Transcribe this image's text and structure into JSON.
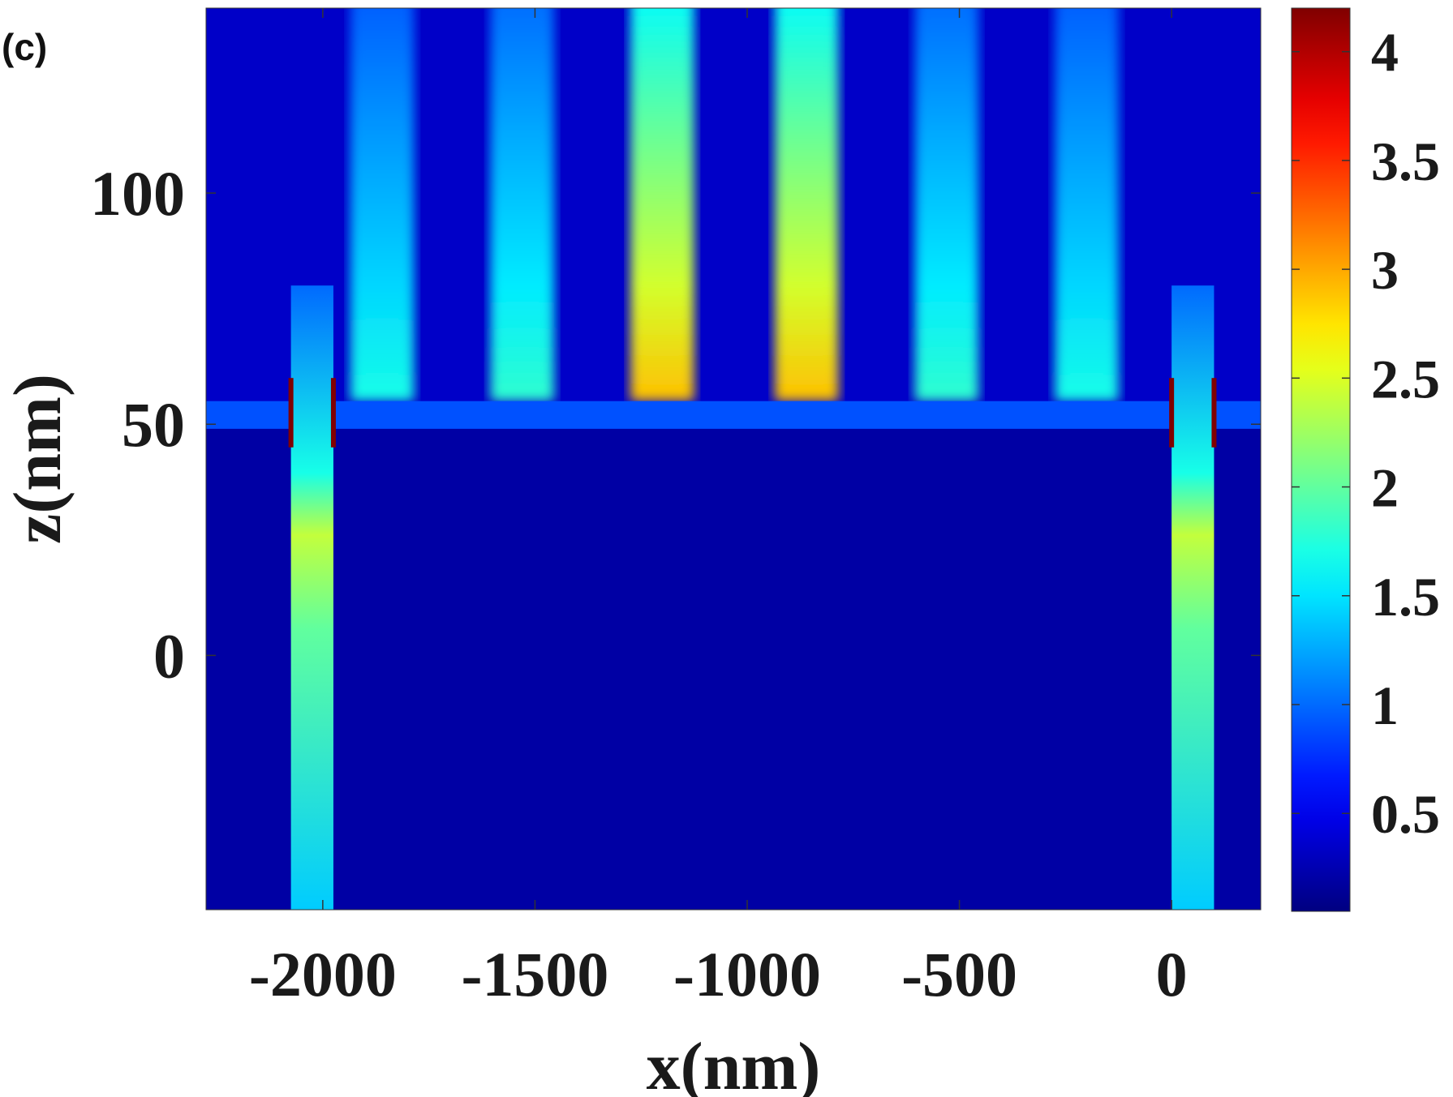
{
  "panel_label": "(c)",
  "chart_data": {
    "type": "heatmap",
    "title": "",
    "xlabel": "x(nm)",
    "ylabel": "z(nm)",
    "xlim": [
      -2275,
      210
    ],
    "ylim": [
      -55,
      140
    ],
    "xticks": [
      -2000,
      -1500,
      -1000,
      -500,
      0
    ],
    "xtick_labels": [
      "-2000",
      "-1500",
      "-1000",
      "-500",
      "0"
    ],
    "yticks": [
      0,
      50,
      100
    ],
    "ytick_labels": [
      "0",
      "50",
      "100"
    ],
    "colormap": "jet",
    "clim": [
      0.05,
      4.2
    ],
    "colorbar_ticks": [
      0.5,
      1,
      1.5,
      2,
      2.5,
      3,
      3.5,
      4
    ],
    "colorbar_tick_labels": [
      "0.5",
      "1",
      "1.5",
      "2",
      "2.5",
      "3",
      "3.5",
      "4"
    ],
    "film_layer_z": [
      49,
      55
    ],
    "interference_fringe_centers_x": [
      -1860,
      -1530,
      -1200,
      -860,
      -530,
      -200
    ],
    "interference_fringe_peak_values": [
      1.7,
      1.8,
      2.9,
      2.9,
      1.8,
      1.7
    ],
    "slit_edges_x": [
      -2075,
      -1975,
      0,
      100
    ],
    "slit_peak_value": 4.2
  },
  "colors": {
    "background": "#ffffff",
    "text": "#1a1a1a"
  }
}
